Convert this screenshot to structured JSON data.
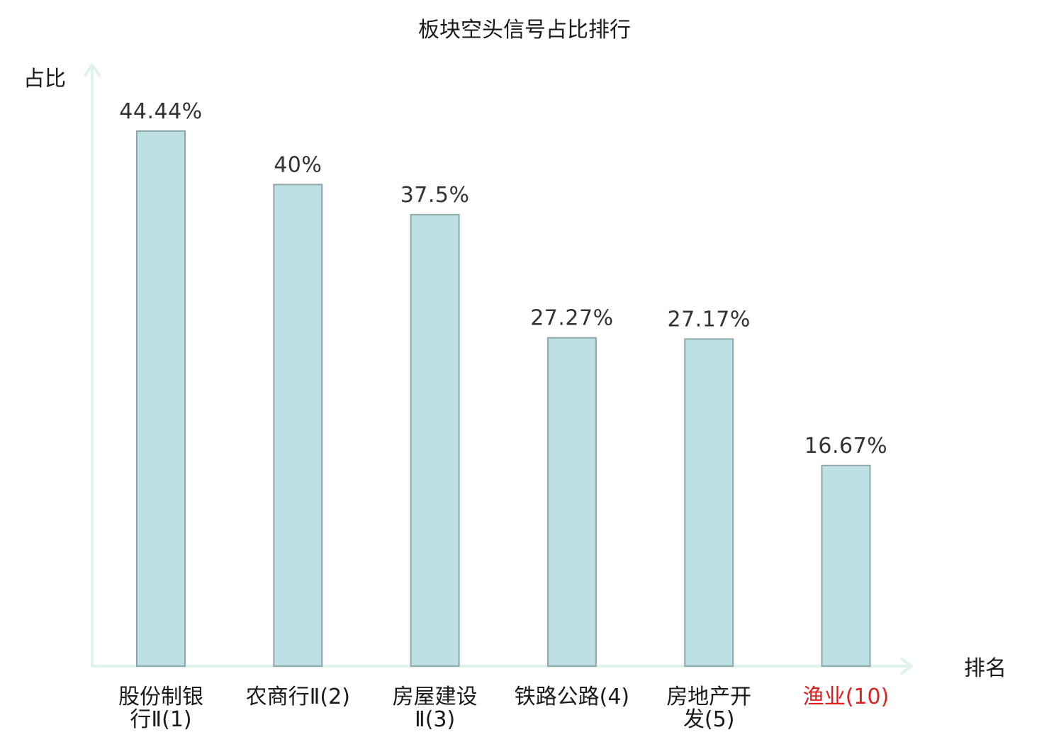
{
  "chart_data": {
    "type": "bar",
    "title": "板块空头信号占比排行",
    "ylabel": "占比",
    "xlabel": "排名",
    "ylim": [
      0,
      50
    ],
    "grid": false,
    "legend": "none",
    "categories": [
      {
        "lines": [
          "股份制银",
          "行Ⅱ(1)"
        ],
        "highlight": false
      },
      {
        "lines": [
          "农商行Ⅱ(2)"
        ],
        "highlight": false
      },
      {
        "lines": [
          "房屋建设",
          "Ⅱ(3)"
        ],
        "highlight": false
      },
      {
        "lines": [
          "铁路公路(4)"
        ],
        "highlight": false
      },
      {
        "lines": [
          "房地产开",
          "发(5)"
        ],
        "highlight": false
      },
      {
        "lines": [
          "渔业(10)"
        ],
        "highlight": true
      }
    ],
    "values": [
      44.44,
      40,
      37.5,
      27.27,
      27.17,
      16.67
    ],
    "value_labels": [
      "44.44%",
      "40%",
      "37.5%",
      "27.27%",
      "27.17%",
      "16.67%"
    ],
    "colors": {
      "bar_fill": "#bce0e3",
      "bar_stroke": "#8fa8a9",
      "axis": "#dff2ef",
      "text": "#1a1a1a",
      "highlight": "#e02020"
    }
  }
}
